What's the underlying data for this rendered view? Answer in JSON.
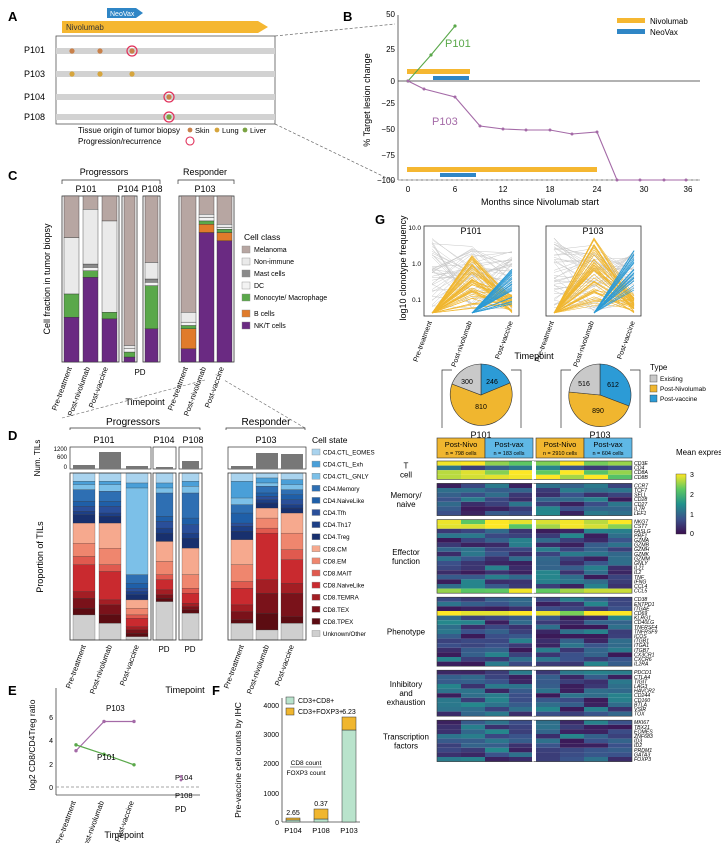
{
  "panels": {
    "a": "A",
    "b": "B",
    "c": "C",
    "d": "D",
    "e": "E",
    "f": "F",
    "g": "G"
  },
  "colors": {
    "nivo": "#f5b731",
    "neovax": "#2f86c6",
    "green": "#5aa84a",
    "purple": "#a46aa7",
    "grey": "#999999",
    "skin": "#c9814a",
    "lung": "#d6a53d",
    "liver": "#7aa343",
    "circle": "#e0305a",
    "melanoma": "#b7a6a2",
    "nonimmune": "#eaeaea",
    "mast": "#8a8a8a",
    "dc": "#f3f3f3",
    "mono": "#5aa84a",
    "bcells": "#e07b2b",
    "nkt": "#6a2a82",
    "existing": "#c9c9c9",
    "postnivo": "#f0b62f",
    "postvax": "#2c9bd6"
  },
  "panel_a": {
    "nivo_label": "Nivolumab",
    "neovax_label": "NeoVax",
    "patients": [
      "P101",
      "P103",
      "P104",
      "P108"
    ],
    "legend_title": "Tissue origin of tumor biopsy",
    "legend_skin": "Skin",
    "legend_lung": "Lung",
    "legend_liver": "Liver",
    "legend_prog": "Progression/recurrence"
  },
  "panel_b": {
    "ylabel": "% Target lesion change",
    "xlabel": "Months since Nivolumab start",
    "legend_nivo": "Nivolumab",
    "legend_neovax": "NeoVax",
    "series_labels": [
      "P101",
      "P103"
    ]
  },
  "panel_c": {
    "group_progressors": "Progressors",
    "group_responder": "Responder",
    "patients": [
      "P101",
      "P104",
      "P108",
      "P103"
    ],
    "ylabel": "Cell fraction in tumor biopsy",
    "xlabel": "Timepoint",
    "timepoints": [
      "Pre-treatment",
      "Post-nivolumab",
      "Post-vaccine"
    ],
    "pd": "PD",
    "legend_title": "Cell class",
    "legend": [
      "Melanoma",
      "Non-immune",
      "Mast cells",
      "DC",
      "Monocyte/ Macrophage",
      "B cells",
      "NK/T cells"
    ]
  },
  "panel_d": {
    "group_progressors": "Progressors",
    "group_responder": "Responder",
    "patients": [
      "P101",
      "P104",
      "P108",
      "P103"
    ],
    "num_label": "Num. TILs",
    "ylabel": "Proportion of TILs",
    "xlabel": "Timepoint",
    "ticks": [
      "1200",
      "600",
      "0"
    ],
    "legend_title": "Cell state",
    "legend": [
      "CD4.CTL_EOMES",
      "CD4.CTL_Exh",
      "CD4.CTL_GNLY",
      "CD4.Memory",
      "CD4.NaiveLike",
      "CD4.Tfh",
      "CD4.Th17",
      "CD4.Treg",
      "CD8.CM",
      "CD8.EM",
      "CD8.MAIT",
      "CD8.NaiveLike",
      "CD8.TEMRA",
      "CD8.TEX",
      "CD8.TPEX",
      "Unknown/Other"
    ],
    "legend_colors": [
      "#a9d3ee",
      "#4a9fd8",
      "#7cc0e8",
      "#2e6fb3",
      "#1f5fa8",
      "#2a4f9a",
      "#1d3f86",
      "#18306e",
      "#f6a98e",
      "#ef866e",
      "#e05a4f",
      "#c92a2f",
      "#a31e24",
      "#7a121a",
      "#5c0c12",
      "#cfcfcf"
    ]
  },
  "panel_e": {
    "ylabel": "log2 CD8/CD4Treg ratio",
    "xlabel": "Timepoint",
    "timepoints": [
      "Pre-treatment",
      "Post-nivolumab",
      "Post-vaccine"
    ],
    "pd": "PD",
    "series": [
      {
        "name": "P103",
        "values": [
          3.1,
          5.6,
          5.6
        ]
      },
      {
        "name": "P101",
        "values": [
          3.6,
          2.8,
          1.9
        ]
      }
    ],
    "pd_labels": [
      "P104",
      "P108"
    ],
    "pd_values": [
      0.9,
      0.6
    ]
  },
  "panel_f": {
    "ylabel": "Pre-vaccine cell counts by IHC",
    "legend": [
      "CD3+CD8+",
      "CD3+FOXP3+"
    ],
    "ticks": [
      "0",
      "1000",
      "2000",
      "3000",
      "4000"
    ],
    "ratio_numer": "CD8 count",
    "ratio_denom": "FOXP3 count",
    "categories": [
      "P104",
      "P108",
      "P103"
    ],
    "ratios": [
      "2.65",
      "0.37",
      "6.23"
    ]
  },
  "panel_g": {
    "ylabel": "log10 clonotype frequency",
    "xlabel": "Timepoint",
    "patients": [
      "P101",
      "P103"
    ],
    "yticks": [
      "10.0",
      "1.0",
      "0.1"
    ],
    "timepoints": [
      "Pre-treatment",
      "Post-nivolumab",
      "Post-vaccine"
    ],
    "legend_title": "Type",
    "legend": [
      "Existing",
      "Post-Nivolumab",
      "Post-vaccine"
    ],
    "mean_title": "Mean expression",
    "colorbar_ticks": [
      "3",
      "2",
      "1",
      "0"
    ],
    "heads": [
      {
        "name": "Post-Nivo",
        "n": "n = 798 cells"
      },
      {
        "name": "Post-vax",
        "n": "n = 183 cells"
      },
      {
        "name": "Post-Nivo",
        "n": "n = 2910 cells"
      },
      {
        "name": "Post-vax",
        "n": "n = 604 cells"
      }
    ],
    "categories": [
      "T cell",
      "Memory/ naive",
      "Effector function",
      "Phenotype",
      "Inhibitory and exhaustion",
      "Transcription factors"
    ],
    "genes": [
      [
        "CD3E",
        "CD4",
        "CD8A",
        "CD8B"
      ],
      [
        "CCR7",
        "TCF7",
        "SELL",
        "CD28",
        "CD27",
        "IL7R",
        "LEF1"
      ],
      [
        "NKG7",
        "CST7",
        "FASLG",
        "PRF1",
        "GZMA",
        "GZMB",
        "GZMH",
        "GZMK",
        "GZMM",
        "GNLY",
        "IL21",
        "IL2",
        "TNF",
        "IFNG",
        "CCL4",
        "CCL5"
      ],
      [
        "CD38",
        "ENTPD1",
        "ITGAE",
        "CD69",
        "KLRG1",
        "CD40LG",
        "TNFRSF4",
        "TNFRSF9",
        "ICOS",
        "ITGB1",
        "ITGA1",
        "ITGB7",
        "CX3CR1",
        "CXCR6",
        "IL2RA"
      ],
      [
        "PDCD1",
        "CTLA4",
        "TIGIT",
        "LAG3",
        "HAVCR2",
        "CD244",
        "CD160",
        "BTLA",
        "VSIR",
        "TOX"
      ],
      [
        "MKI67",
        "TBX21",
        "EOMES",
        "ZNF683",
        "ID3",
        "ID2",
        "PRDM1",
        "GATA3",
        "FOXP3"
      ]
    ]
  }
}
